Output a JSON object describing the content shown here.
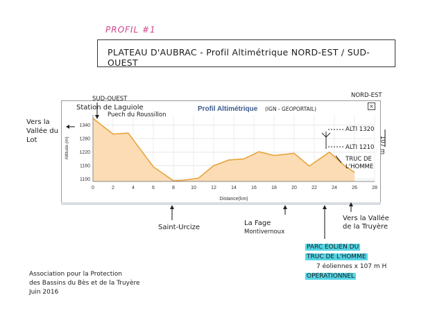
{
  "header": {
    "profil_label": "PROFIL #1",
    "title": "PLATEAU D'AUBRAC - Profil Altimétrique NORD-EST / SUD-OUEST"
  },
  "chart_panel": {
    "title": "Profil Altimétrique",
    "source_note": "(IGN - GEOPORTAIL)",
    "close_icon": "close-icon"
  },
  "annotations": {
    "sud_ouest": "SUD-OUEST",
    "nord_est": "NORD-EST",
    "station_line1": "Station de Laguiole",
    "station_line2": "Puech du Roussillon",
    "vers_lot": [
      "Vers la",
      "Vallée du",
      "Lot"
    ],
    "altitude_1320": "ALTI 1320",
    "altitude_1210": "ALTI 1210",
    "delta_107": "107 m",
    "truc_homme": [
      "TRUC DE",
      "L'HOMME"
    ],
    "saint_urcize": "Saint-Urcize",
    "la_fage": [
      "La Fage",
      "Montivernoux"
    ],
    "vers_truyere": [
      "Vers la Vallée",
      "de la Truyère"
    ],
    "parc": [
      "PARC EOLIEN DU",
      "TRUC DE L'HOMME",
      "7 éoliennes x 107 m H",
      "OPERATIONNEL"
    ],
    "assoc": [
      "Association pour la Protection",
      "des Bassins du Bès et de la Truyère",
      "Juin 2016"
    ]
  },
  "chart_data": {
    "type": "area",
    "title": "Profil Altimétrique",
    "xlabel": "Distance(km)",
    "ylabel": "Altitude (m)",
    "xlim": [
      0,
      28
    ],
    "ylim": [
      1090,
      1385
    ],
    "xticks": [
      0,
      2,
      4,
      6,
      8,
      10,
      12,
      14,
      16,
      18,
      20,
      22,
      24,
      26,
      28
    ],
    "yticks": [
      1100,
      1160,
      1220,
      1280,
      1340
    ],
    "x": [
      0,
      2,
      3.5,
      6,
      8,
      9,
      10.5,
      12,
      13.5,
      15,
      16.5,
      18,
      20,
      21.5,
      23.5,
      25,
      26
    ],
    "y": [
      1370,
      1300,
      1305,
      1155,
      1093,
      1095,
      1105,
      1160,
      1185,
      1190,
      1222,
      1205,
      1215,
      1158,
      1220,
      1160,
      1130
    ],
    "fill_color": "#fbdcb4",
    "line_color": "#e8a33a",
    "grid": true
  }
}
